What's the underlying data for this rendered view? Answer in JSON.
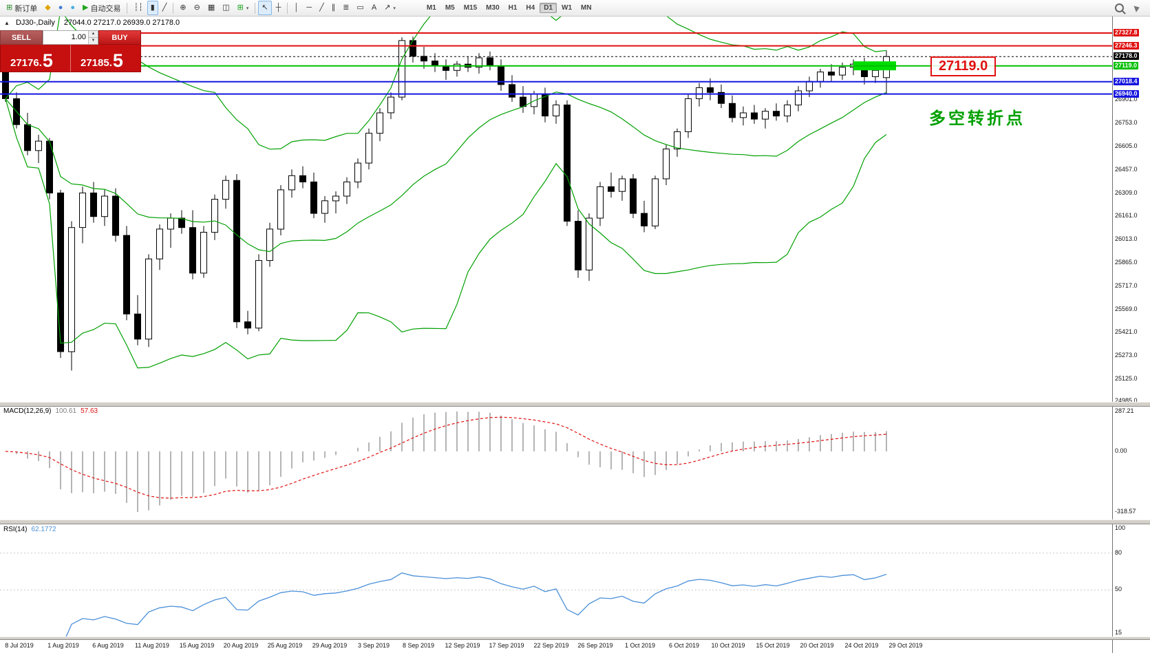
{
  "toolbar": {
    "items": [
      {
        "n": "new-order-button",
        "g": "⊞",
        "gc": "#2e8b2e",
        "label": "新订单"
      },
      {
        "n": "indicators-icon",
        "g": "◆",
        "gc": "#e0a400"
      },
      {
        "n": "market-watch-icon",
        "g": "●",
        "gc": "#3d7bd6"
      },
      {
        "n": "signals-icon",
        "g": "●",
        "gc": "#49aede"
      },
      {
        "n": "autotrading-button",
        "g": "▶",
        "gc": "#1fa51f",
        "label": "自动交易"
      },
      {
        "sep": true
      },
      {
        "n": "ohlc-bars-icon",
        "g": "┆┆"
      },
      {
        "n": "candlestick-chart-icon",
        "g": "▮",
        "pressed": true
      },
      {
        "n": "line-chart-icon",
        "g": "╱"
      },
      {
        "sep": true
      },
      {
        "n": "zoom-in-icon",
        "g": "⊕"
      },
      {
        "n": "zoom-out-icon",
        "g": "⊖"
      },
      {
        "n": "tile-windows-icon",
        "g": "▦"
      },
      {
        "n": "cascade-windows-icon",
        "g": "◫"
      },
      {
        "n": "add-indicator-icon",
        "g": "⊞",
        "gc": "#1fa51f",
        "caret": "▾"
      },
      {
        "sep": true
      },
      {
        "n": "cursor-icon",
        "g": "↖",
        "pressed": true
      },
      {
        "n": "crosshair-icon",
        "g": "┼"
      },
      {
        "sep": true
      },
      {
        "n": "vertical-line-icon",
        "g": "│"
      },
      {
        "n": "horizontal-line-icon",
        "g": "─"
      },
      {
        "n": "trendline-icon",
        "g": "╱"
      },
      {
        "n": "equidistant-channel-icon",
        "g": "∥"
      },
      {
        "n": "fibonacci-icon",
        "g": "≣"
      },
      {
        "n": "shapes-icon",
        "g": "▭"
      },
      {
        "n": "text-label-icon",
        "g": "A"
      },
      {
        "n": "arrow-tools-icon",
        "g": "↗",
        "caret": "▾"
      }
    ],
    "timeframes": [
      "M1",
      "M5",
      "M15",
      "M30",
      "H1",
      "H4",
      "D1",
      "W1",
      "MN"
    ],
    "active_timeframe": "D1"
  },
  "chart_header": {
    "collapse_icon": "▲",
    "symbol_period": "DJ30-,Daily",
    "ohlc": "27044.0 27217.0 26939.0 27178.0"
  },
  "one_click": {
    "sell_label": "SELL",
    "buy_label": "BUY",
    "volume": "1.00",
    "spin_up": "▲",
    "spin_down": "▼",
    "sell_price": "27176.",
    "sell_price_big": "5",
    "buy_price": "27185.",
    "buy_price_big": "5"
  },
  "indicators": {
    "macd_name": "MACD(12,26,9)",
    "macd_value_main": "100.61",
    "macd_value_signal": "57.63",
    "rsi_name": "RSI(14)",
    "rsi_value": "62.1772"
  },
  "annotations": {
    "price_label": "27119.0",
    "turning_point": "多空转折点"
  },
  "levels": [
    {
      "label": "27327.8",
      "price": 27327.8,
      "color": "#e01010",
      "width": 2
    },
    {
      "label": "27246.3",
      "price": 27246.3,
      "color": "#e01010",
      "width": 2
    },
    {
      "label": "27178.0",
      "price": 27178.0,
      "color": "#000000",
      "width": 1,
      "dash": true
    },
    {
      "label": "27119.0",
      "price": 27119.0,
      "color": "#00c000",
      "width": 2
    },
    {
      "label": "27018.4",
      "price": 27018.4,
      "color": "#1515e0",
      "width": 2
    },
    {
      "label": "26940.0",
      "price": 26940.0,
      "color": "#1515e0",
      "width": 2
    }
  ],
  "axes": {
    "price_scale": [
      "26901.0",
      "26753.0",
      "26605.0",
      "26457.0",
      "26309.0",
      "26161.0",
      "26013.0",
      "25865.0",
      "25717.0",
      "25569.0",
      "25421.0",
      "25273.0",
      "25125.0",
      "24985.0"
    ],
    "macd_scale": [
      "287.21",
      "0.00",
      "-318.57"
    ],
    "rsi_scale": [
      "100",
      "80",
      "50",
      "15"
    ],
    "dates": [
      "8 Jul 2019",
      "1 Aug 2019",
      "6 Aug 2019",
      "11 Aug 2019",
      "15 Aug 2019",
      "20 Aug 2019",
      "25 Aug 2019",
      "29 Aug 2019",
      "3 Sep 2019",
      "8 Sep 2019",
      "12 Sep 2019",
      "17 Sep 2019",
      "22 Sep 2019",
      "26 Sep 2019",
      "1 Oct 2019",
      "6 Oct 2019",
      "10 Oct 2019",
      "15 Oct 2019",
      "20 Oct 2019",
      "24 Oct 2019",
      "29 Oct 2019"
    ]
  },
  "colors": {
    "bollinger": "#00a000",
    "macd_histogram": "#b4b4b4",
    "macd_signal": "#e01010",
    "rsi_line": "#4a90d9",
    "rsi_levels": "#c8c8c8",
    "green_zone": "#00dd00",
    "annotation_red": "#e01010",
    "turning_point_green": "#00a000",
    "panel_red": "#c60f0f"
  },
  "chart_data": {
    "type": "candlestick",
    "symbol": "DJ30-",
    "period": "Daily",
    "ohlc_current": {
      "open": 27044.0,
      "high": 27217.0,
      "low": 26939.0,
      "close": 27178.0
    },
    "y_axis": {
      "top": 27327.8,
      "bottom": 24985.0
    },
    "overlays": [
      "Bollinger Bands"
    ],
    "sub_indicators": [
      {
        "type": "macd",
        "params": [
          12,
          26,
          9
        ],
        "values": [
          100.61,
          57.63
        ],
        "scale_max": 287.21,
        "scale_min": -318.57
      },
      {
        "type": "rsi",
        "params": [
          14
        ],
        "value": 62.1772,
        "levels": [
          80,
          50
        ],
        "scale": [
          100,
          80,
          50,
          15
        ]
      }
    ],
    "candles": [
      [
        27085,
        27105,
        26890,
        26910
      ],
      [
        26910,
        26950,
        26720,
        26745
      ],
      [
        26745,
        26820,
        26550,
        26580
      ],
      [
        26580,
        26680,
        26500,
        26640
      ],
      [
        26640,
        26660,
        26270,
        26310
      ],
      [
        26310,
        26330,
        25260,
        25300
      ],
      [
        25300,
        26130,
        25180,
        26090
      ],
      [
        26090,
        26350,
        25990,
        26310
      ],
      [
        26310,
        26380,
        26120,
        26160
      ],
      [
        26160,
        26330,
        26100,
        26290
      ],
      [
        26290,
        26340,
        26000,
        26040
      ],
      [
        26040,
        26100,
        25500,
        25540
      ],
      [
        25540,
        25660,
        25340,
        25380
      ],
      [
        25380,
        25920,
        25330,
        25890
      ],
      [
        25890,
        26110,
        25820,
        26080
      ],
      [
        26080,
        26180,
        25960,
        26150
      ],
      [
        26150,
        26200,
        26050,
        26090
      ],
      [
        26090,
        26200,
        25760,
        25800
      ],
      [
        25800,
        26100,
        25770,
        26060
      ],
      [
        26060,
        26300,
        26010,
        26270
      ],
      [
        26270,
        26420,
        26210,
        26390
      ],
      [
        26390,
        26430,
        25450,
        25490
      ],
      [
        25490,
        25560,
        25410,
        25450
      ],
      [
        25450,
        25920,
        25430,
        25880
      ],
      [
        25880,
        26120,
        25840,
        26080
      ],
      [
        26080,
        26360,
        26040,
        26330
      ],
      [
        26330,
        26460,
        26280,
        26420
      ],
      [
        26420,
        26480,
        26340,
        26380
      ],
      [
        26380,
        26440,
        26150,
        26180
      ],
      [
        26180,
        26290,
        26120,
        26260
      ],
      [
        26260,
        26320,
        26180,
        26290
      ],
      [
        26290,
        26410,
        26240,
        26380
      ],
      [
        26380,
        26530,
        26340,
        26500
      ],
      [
        26500,
        26720,
        26460,
        26690
      ],
      [
        26690,
        26850,
        26640,
        26820
      ],
      [
        26820,
        26950,
        26780,
        26920
      ],
      [
        26920,
        27300,
        26900,
        27280
      ],
      [
        27280,
        27305,
        27140,
        27180
      ],
      [
        27180,
        27240,
        27100,
        27150
      ],
      [
        27150,
        27200,
        27080,
        27120
      ],
      [
        27120,
        27160,
        27030,
        27090
      ],
      [
        27090,
        27150,
        27050,
        27130
      ],
      [
        27130,
        27180,
        27080,
        27110
      ],
      [
        27110,
        27200,
        27070,
        27170
      ],
      [
        27170,
        27210,
        27090,
        27120
      ],
      [
        27120,
        27160,
        26960,
        27000
      ],
      [
        27000,
        27060,
        26890,
        26920
      ],
      [
        26920,
        26990,
        26820,
        26860
      ],
      [
        26860,
        26960,
        26810,
        26940
      ],
      [
        26940,
        26980,
        26760,
        26800
      ],
      [
        26800,
        26900,
        26750,
        26870
      ],
      [
        26870,
        26900,
        26100,
        26130
      ],
      [
        26130,
        26200,
        25770,
        25820
      ],
      [
        25820,
        26180,
        25750,
        26150
      ],
      [
        26150,
        26380,
        26100,
        26350
      ],
      [
        26350,
        26440,
        26280,
        26320
      ],
      [
        26320,
        26420,
        26260,
        26400
      ],
      [
        26400,
        26430,
        26150,
        26180
      ],
      [
        26180,
        26260,
        26060,
        26100
      ],
      [
        26100,
        26420,
        26080,
        26400
      ],
      [
        26400,
        26620,
        26360,
        26590
      ],
      [
        26590,
        26720,
        26540,
        26700
      ],
      [
        26700,
        26940,
        26660,
        26910
      ],
      [
        26910,
        27010,
        26860,
        26980
      ],
      [
        26980,
        27040,
        26900,
        26950
      ],
      [
        26950,
        27000,
        26850,
        26880
      ],
      [
        26880,
        26930,
        26760,
        26790
      ],
      [
        26790,
        26860,
        26740,
        26820
      ],
      [
        26820,
        26870,
        26750,
        26780
      ],
      [
        26780,
        26850,
        26720,
        26830
      ],
      [
        26830,
        26880,
        26770,
        26800
      ],
      [
        26800,
        26900,
        26760,
        26870
      ],
      [
        26870,
        26990,
        26830,
        26960
      ],
      [
        26960,
        27050,
        26920,
        27020
      ],
      [
        27020,
        27100,
        26980,
        27080
      ],
      [
        27080,
        27130,
        27020,
        27060
      ],
      [
        27060,
        27140,
        27030,
        27110
      ],
      [
        27110,
        27160,
        27060,
        27130
      ],
      [
        27130,
        27170,
        27000,
        27050
      ],
      [
        27050,
        27120,
        27010,
        27090
      ],
      [
        27044,
        27217,
        26939,
        27178
      ]
    ]
  }
}
